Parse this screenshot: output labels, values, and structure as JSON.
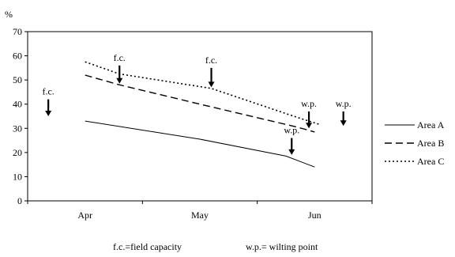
{
  "chart_data": {
    "type": "line",
    "unit_label": "%",
    "categories": [
      "Apr",
      "May",
      "Jun"
    ],
    "ylim": [
      0,
      70
    ],
    "yticks": [
      0,
      10,
      20,
      30,
      40,
      50,
      60,
      70
    ],
    "x_range": [
      0.5,
      3.5
    ],
    "grid": false,
    "legend_position": "right",
    "series": [
      {
        "name": "Area A",
        "style": "solid",
        "x": [
          1.0,
          2.0,
          2.75,
          3.0
        ],
        "y": [
          33,
          25.5,
          18.5,
          14
        ]
      },
      {
        "name": "Area B",
        "style": "dashed",
        "x": [
          1.0,
          1.3,
          2.0,
          2.85,
          3.0
        ],
        "y": [
          52,
          48,
          40,
          30.5,
          28.5
        ]
      },
      {
        "name": "Area C",
        "style": "dotted",
        "x": [
          1.0,
          1.3,
          2.1,
          2.85,
          3.05
        ],
        "y": [
          57.5,
          52.5,
          46.5,
          34.5,
          31.5
        ]
      }
    ],
    "annotations": [
      {
        "text": "f.c.",
        "x": 0.68,
        "y_top": 42,
        "y_tip": 35
      },
      {
        "text": "f.c.",
        "x": 1.3,
        "y_top": 56,
        "y_tip": 48.5
      },
      {
        "text": "f.c.",
        "x": 2.1,
        "y_top": 55,
        "y_tip": 47
      },
      {
        "text": "w.p.",
        "x": 2.8,
        "y_top": 26,
        "y_tip": 19
      },
      {
        "text": "w.p.",
        "x": 2.95,
        "y_top": 37,
        "y_tip": 30
      },
      {
        "text": "w.p.",
        "x": 3.25,
        "y_top": 37,
        "y_tip": 31
      }
    ],
    "footnotes": [
      "f.c.=field capacity",
      "w.p.= wilting point"
    ]
  }
}
